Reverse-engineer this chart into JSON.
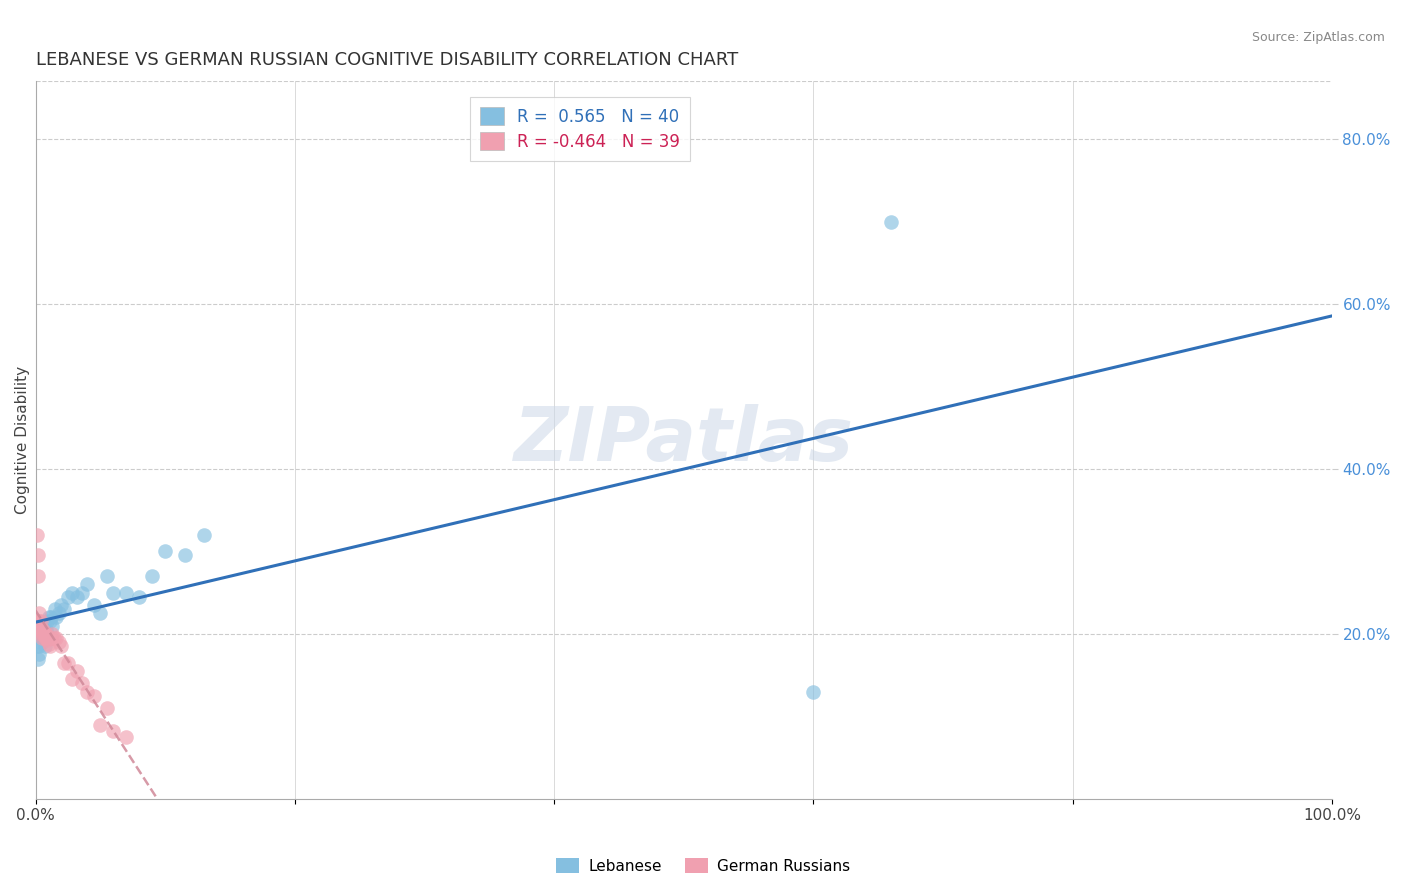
{
  "title": "LEBANESE VS GERMAN RUSSIAN COGNITIVE DISABILITY CORRELATION CHART",
  "source": "Source: ZipAtlas.com",
  "ylabel": "Cognitive Disability",
  "watermark": "ZIPatlas",
  "r_lebanese": 0.565,
  "n_lebanese": 40,
  "r_german_russian": -0.464,
  "n_german_russian": 39,
  "xlim": [
    0,
    1.0
  ],
  "ylim": [
    0,
    0.87
  ],
  "color_lebanese": "#85bfe0",
  "color_german_russian": "#f0a0b0",
  "line_color_lebanese": "#3070b8",
  "line_color_german_russian": "#d08898",
  "lebanese_x": [
    0.001,
    0.002,
    0.002,
    0.003,
    0.003,
    0.004,
    0.005,
    0.005,
    0.006,
    0.006,
    0.007,
    0.007,
    0.008,
    0.009,
    0.01,
    0.011,
    0.012,
    0.013,
    0.015,
    0.016,
    0.018,
    0.02,
    0.022,
    0.025,
    0.028,
    0.032,
    0.036,
    0.04,
    0.045,
    0.05,
    0.055,
    0.06,
    0.07,
    0.08,
    0.09,
    0.1,
    0.115,
    0.13,
    0.6,
    0.66
  ],
  "lebanese_y": [
    0.185,
    0.2,
    0.17,
    0.185,
    0.175,
    0.195,
    0.2,
    0.19,
    0.21,
    0.21,
    0.185,
    0.195,
    0.205,
    0.215,
    0.22,
    0.215,
    0.22,
    0.21,
    0.23,
    0.22,
    0.225,
    0.235,
    0.23,
    0.245,
    0.25,
    0.245,
    0.25,
    0.26,
    0.235,
    0.225,
    0.27,
    0.25,
    0.25,
    0.245,
    0.27,
    0.3,
    0.295,
    0.32,
    0.13,
    0.7
  ],
  "german_russian_x": [
    0.001,
    0.001,
    0.002,
    0.002,
    0.003,
    0.003,
    0.003,
    0.004,
    0.004,
    0.005,
    0.005,
    0.006,
    0.006,
    0.007,
    0.007,
    0.007,
    0.008,
    0.008,
    0.009,
    0.009,
    0.01,
    0.011,
    0.012,
    0.013,
    0.014,
    0.016,
    0.018,
    0.02,
    0.022,
    0.025,
    0.028,
    0.032,
    0.036,
    0.04,
    0.045,
    0.05,
    0.055,
    0.06,
    0.07
  ],
  "german_russian_y": [
    0.215,
    0.32,
    0.295,
    0.27,
    0.215,
    0.225,
    0.205,
    0.2,
    0.215,
    0.195,
    0.205,
    0.205,
    0.2,
    0.2,
    0.195,
    0.2,
    0.2,
    0.195,
    0.195,
    0.192,
    0.188,
    0.185,
    0.195,
    0.2,
    0.195,
    0.195,
    0.19,
    0.185,
    0.165,
    0.165,
    0.145,
    0.155,
    0.14,
    0.13,
    0.125,
    0.09,
    0.11,
    0.082,
    0.075
  ],
  "background_color": "#ffffff",
  "grid_color": "#cccccc",
  "title_fontsize": 13,
  "axis_label_fontsize": 11,
  "tick_fontsize": 11,
  "legend_line1": "R =  0.565   N = 40",
  "legend_line2": "R = -0.464   N = 39"
}
